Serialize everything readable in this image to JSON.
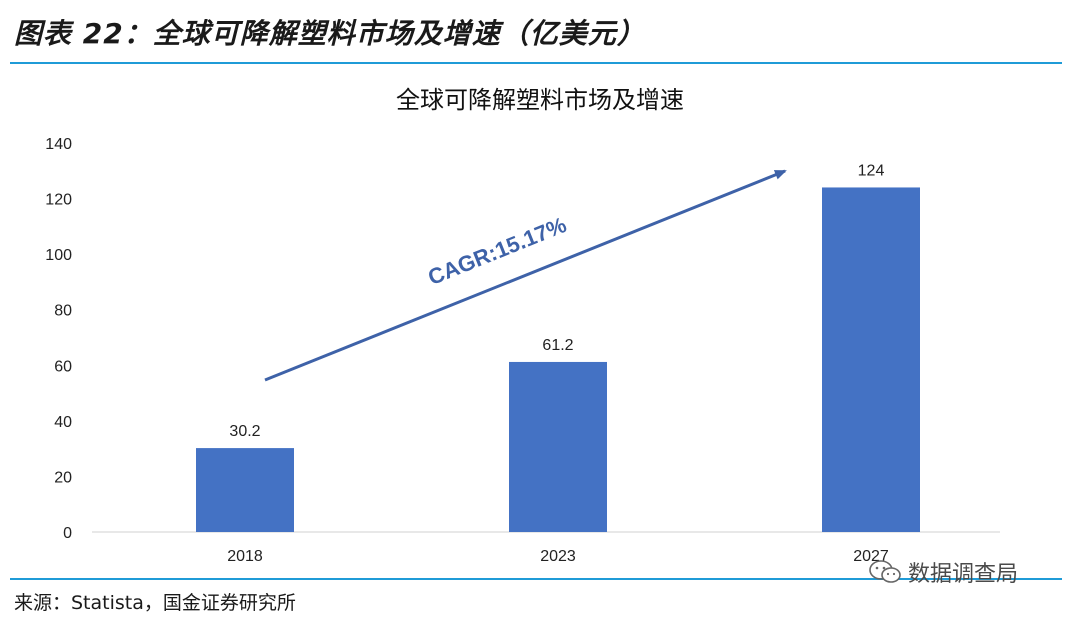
{
  "figure": {
    "title": "图表 22：全球可降解塑料市场及增速（亿美元）",
    "source": "来源：Statista，国金证券研究所",
    "watermark": "数据调查局",
    "watermark_icon": "wechat-icon"
  },
  "chart_data": {
    "type": "bar",
    "title": "全球可降解塑料市场及增速",
    "categories": [
      "2018",
      "2023",
      "2027"
    ],
    "values": [
      30.2,
      61.2,
      124
    ],
    "data_labels": [
      "30.2",
      "61.2",
      "124"
    ],
    "ylim": [
      0,
      140
    ],
    "yticks": [
      0,
      20,
      40,
      60,
      80,
      100,
      120,
      140
    ],
    "grid": false,
    "legend": "none",
    "bar_color": "#4472c4",
    "annotation": {
      "text": "CAGR:15.17%",
      "color": "#3e62a8"
    }
  }
}
